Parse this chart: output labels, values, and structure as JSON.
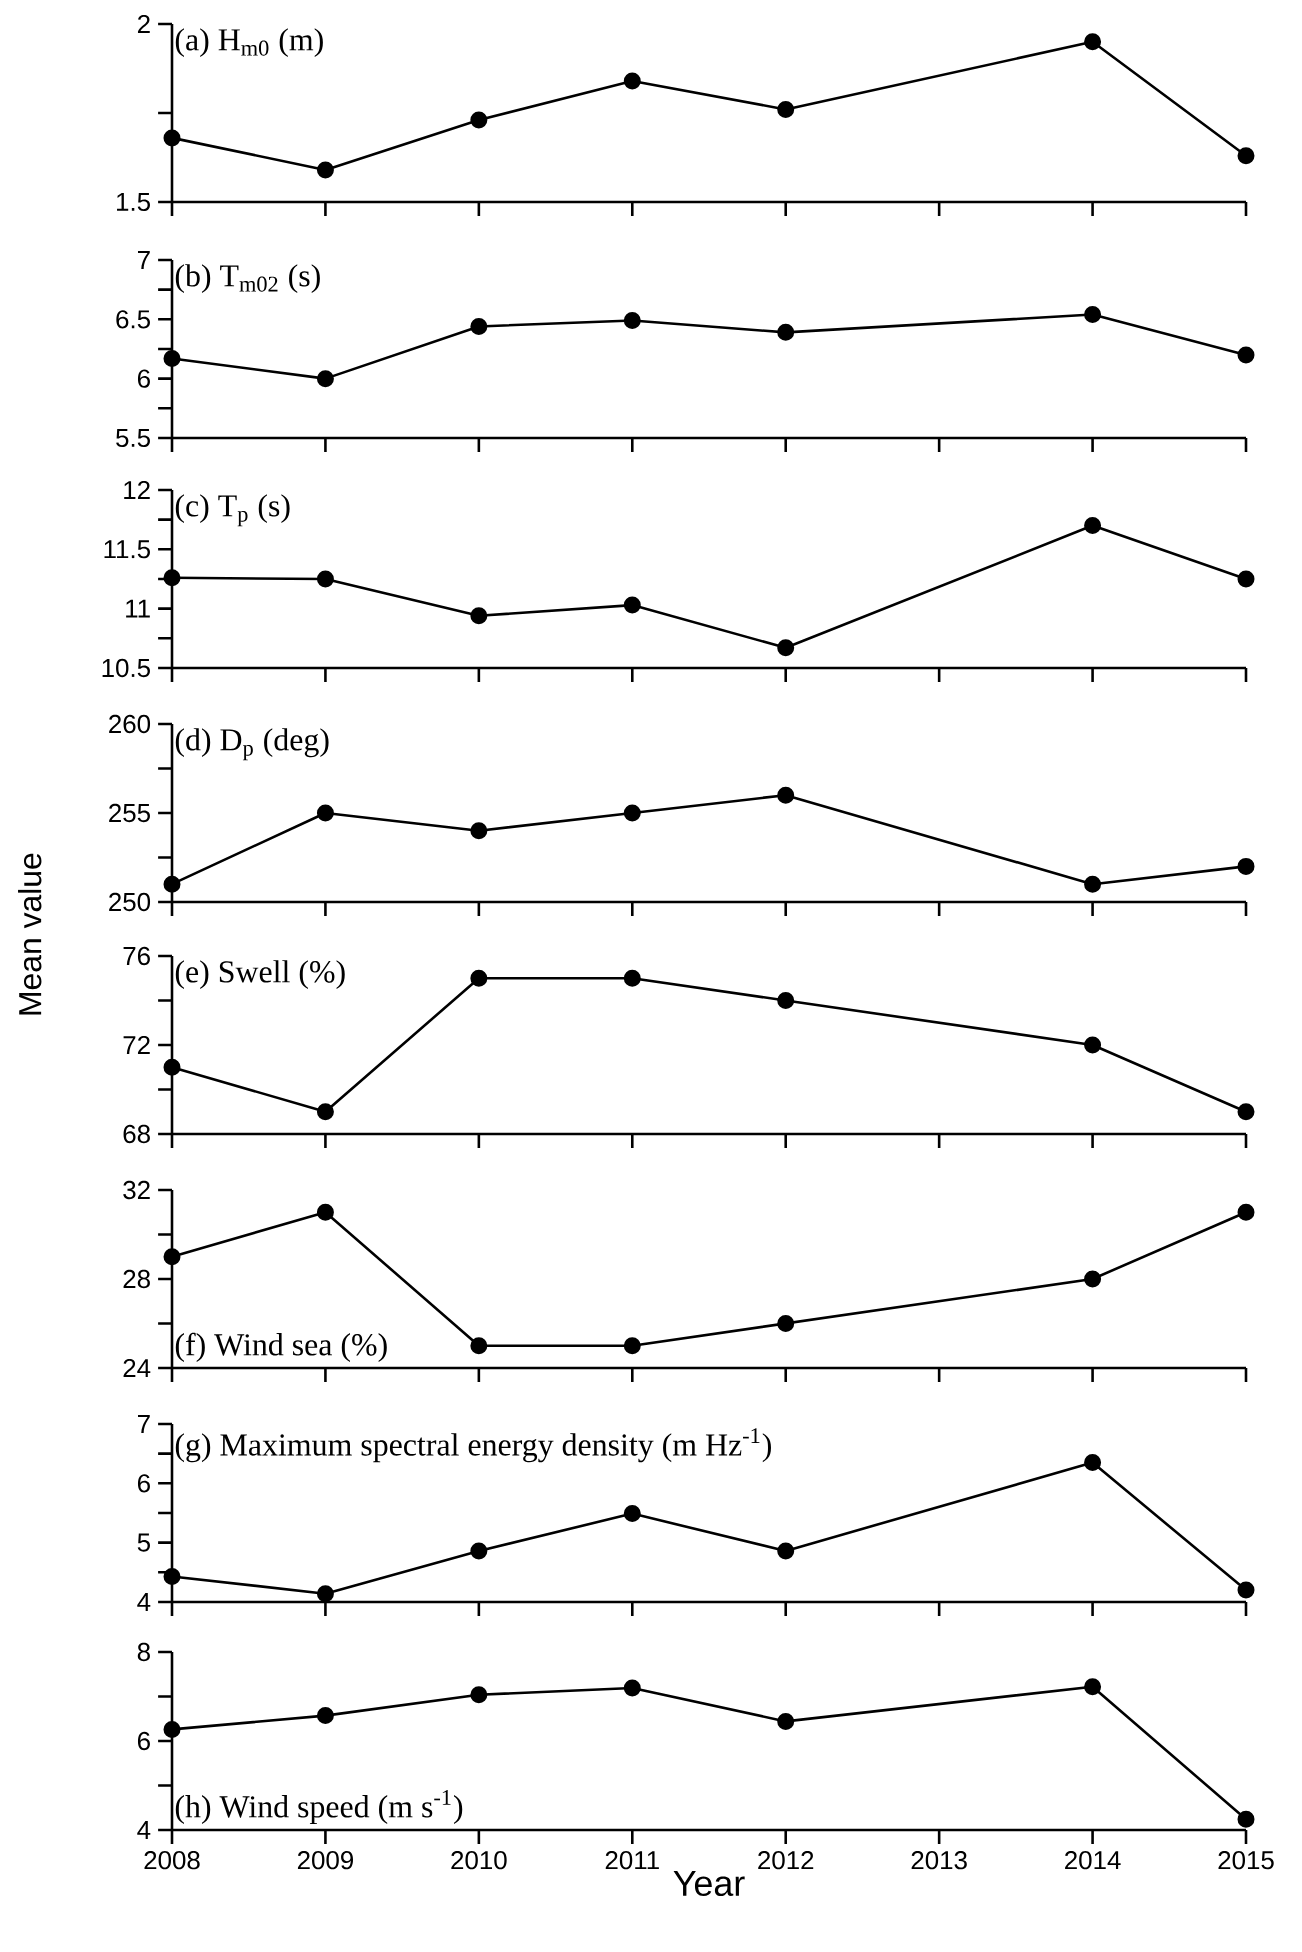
{
  "chart_data": [
    {
      "type": "line",
      "title": "(a) H$_{m0}$ (m)",
      "x": [
        2008,
        2009,
        2010,
        2011,
        2012,
        2014,
        2015
      ],
      "values": [
        1.68,
        1.59,
        1.73,
        1.84,
        1.76,
        1.95,
        1.63
      ],
      "color": "#000000",
      "marker": "circle",
      "xlim": [
        2008,
        2015
      ],
      "xticks": [
        2008,
        2009,
        2010,
        2011,
        2012,
        2013,
        2014,
        2015
      ],
      "ylim": [
        1.5,
        2
      ],
      "yticks": [
        1.5,
        {
          "value": 1.75,
          "label": null
        },
        2
      ],
      "tick_labels": "y"
    },
    {
      "type": "line",
      "title": "(b) T$_{m02}$ (s)",
      "x": [
        2008,
        2009,
        2010,
        2011,
        2012,
        2014,
        2015
      ],
      "values": [
        6.17,
        6.0,
        6.44,
        6.49,
        6.39,
        6.54,
        6.2
      ],
      "color": "#000000",
      "marker": "circle",
      "xlim": [
        2008,
        2015
      ],
      "xticks": [
        2008,
        2009,
        2010,
        2011,
        2012,
        2013,
        2014,
        2015
      ],
      "ylim": [
        5.5,
        7
      ],
      "yticks": [
        5.5,
        {
          "value": 5.75,
          "label": null
        },
        6,
        {
          "value": 6.25,
          "label": null
        },
        6.5,
        {
          "value": 6.75,
          "label": null
        },
        7
      ],
      "tick_labels": "y"
    },
    {
      "type": "line",
      "title": "(c) T$_{p}$ (s)",
      "x": [
        2008,
        2009,
        2010,
        2011,
        2012,
        2014,
        2015
      ],
      "values": [
        11.26,
        11.25,
        10.94,
        11.03,
        10.67,
        11.7,
        11.25
      ],
      "color": "#000000",
      "marker": "circle",
      "xlim": [
        2008,
        2015
      ],
      "xticks": [
        2008,
        2009,
        2010,
        2011,
        2012,
        2013,
        2014,
        2015
      ],
      "ylim": [
        10.5,
        12
      ],
      "yticks": [
        10.5,
        {
          "value": 10.75,
          "label": null
        },
        11,
        {
          "value": 11.25,
          "label": null
        },
        11.5,
        {
          "value": 11.75,
          "label": null
        },
        12
      ],
      "tick_labels": "y"
    },
    {
      "type": "line",
      "title": "(d) D$_{p}$ (deg)",
      "x": [
        2008,
        2009,
        2010,
        2011,
        2012,
        2014,
        2015
      ],
      "values": [
        251,
        255,
        254,
        255,
        256,
        251,
        252
      ],
      "color": "#000000",
      "marker": "circle",
      "xlim": [
        2008,
        2015
      ],
      "xticks": [
        2008,
        2009,
        2010,
        2011,
        2012,
        2013,
        2014,
        2015
      ],
      "ylim": [
        250,
        260
      ],
      "yticks": [
        250,
        {
          "value": 252.5,
          "label": null
        },
        255,
        {
          "value": 257.5,
          "label": null
        },
        260
      ],
      "tick_labels": "y"
    },
    {
      "type": "line",
      "title": "(e) Swell (%)",
      "ylabel": "Mean value",
      "x": [
        2008,
        2009,
        2010,
        2011,
        2012,
        2014,
        2015
      ],
      "values": [
        71,
        69,
        75,
        75,
        74,
        72,
        69
      ],
      "color": "#000000",
      "marker": "circle",
      "xlim": [
        2008,
        2015
      ],
      "xticks": [
        2008,
        2009,
        2010,
        2011,
        2012,
        2013,
        2014,
        2015
      ],
      "ylim": [
        68,
        76
      ],
      "yticks": [
        68,
        {
          "value": 70,
          "label": null
        },
        72,
        {
          "value": 74,
          "label": null
        },
        76
      ],
      "tick_labels": "y"
    },
    {
      "type": "line",
      "title": "(f) Wind sea (%)",
      "x": [
        2008,
        2009,
        2010,
        2011,
        2012,
        2014,
        2015
      ],
      "values": [
        29,
        31,
        25,
        25,
        26,
        28,
        31
      ],
      "color": "#000000",
      "marker": "circle",
      "xlim": [
        2008,
        2015
      ],
      "xticks": [
        2008,
        2009,
        2010,
        2011,
        2012,
        2013,
        2014,
        2015
      ],
      "ylim": [
        24,
        32
      ],
      "yticks": [
        24,
        {
          "value": 26,
          "label": null
        },
        28,
        {
          "value": 30,
          "label": null
        },
        32
      ],
      "tick_labels": "y"
    },
    {
      "type": "line",
      "title": "(g) Maximum spectral energy density (m Hz$^{-1}$)",
      "x": [
        2008,
        2009,
        2010,
        2011,
        2012,
        2014,
        2015
      ],
      "values": [
        4.43,
        4.14,
        4.86,
        5.49,
        4.86,
        6.35,
        4.2
      ],
      "color": "#000000",
      "marker": "circle",
      "xlim": [
        2008,
        2015
      ],
      "xticks": [
        2008,
        2009,
        2010,
        2011,
        2012,
        2013,
        2014,
        2015
      ],
      "ylim": [
        4,
        7
      ],
      "yticks": [
        4,
        {
          "value": 4.5,
          "label": null
        },
        5,
        {
          "value": 5.5,
          "label": null
        },
        6,
        {
          "value": 6.5,
          "label": null
        },
        7
      ],
      "tick_labels": "y"
    },
    {
      "type": "line",
      "title": "(h) Wind speed (m s$^{-1}$)",
      "xlabel": "Year",
      "x": [
        2008,
        2009,
        2010,
        2011,
        2012,
        2014,
        2015
      ],
      "values": [
        6.26,
        6.57,
        7.04,
        7.19,
        6.44,
        7.22,
        4.24
      ],
      "color": "#000000",
      "marker": "circle",
      "xlim": [
        2008,
        2015
      ],
      "xticks": [
        2008,
        2009,
        2010,
        2011,
        2012,
        2013,
        2014,
        2015
      ],
      "ylim": [
        4,
        8
      ],
      "yticks": [
        4,
        {
          "value": 5,
          "label": null
        },
        6,
        {
          "value": 7,
          "label": null
        },
        8
      ]
    }
  ]
}
